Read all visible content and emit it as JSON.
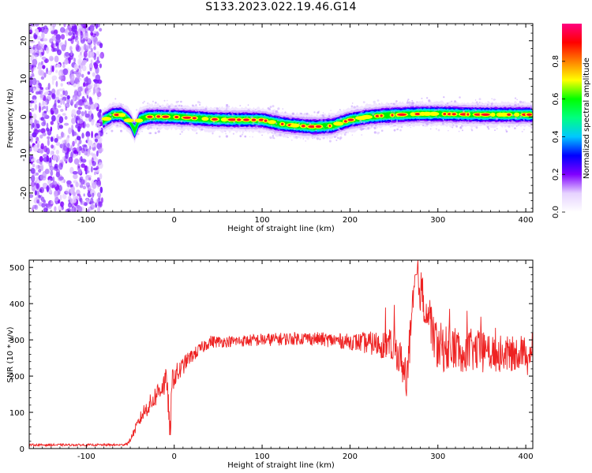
{
  "title": "S133.2023.022.19.46.G14",
  "chart_data": [
    {
      "type": "heatmap",
      "xlabel": "Height of straight line (km)",
      "ylabel": "Frequency (Hz)",
      "xlim": [
        -165,
        408
      ],
      "ylim": [
        -25,
        24.5
      ],
      "xticks": [
        -100,
        0,
        100,
        200,
        300,
        400
      ],
      "xtick_labels": [
        "-100",
        "0",
        "100",
        "200",
        "300",
        "400"
      ],
      "yticks": [
        -20,
        -10,
        0,
        10,
        20
      ],
      "ytick_labels": [
        "-20",
        "-10",
        "0",
        "10",
        "20"
      ],
      "noise_region_x": [
        -165,
        -82
      ],
      "ridge_center": {
        "x": [
          -82,
          -70,
          -60,
          -50,
          -45,
          -40,
          -30,
          -20,
          0,
          50,
          100,
          120,
          140,
          160,
          180,
          200,
          220,
          240,
          280,
          300,
          350,
          408
        ],
        "y": [
          -1.2,
          0.5,
          0.6,
          -1.2,
          -3.8,
          -0.8,
          0.0,
          0.1,
          0.0,
          -0.7,
          -0.8,
          -1.8,
          -2.3,
          -2.6,
          -2.3,
          -0.8,
          0.0,
          0.4,
          0.8,
          0.8,
          0.6,
          0.6
        ]
      },
      "grid": false,
      "colorbar": {
        "label": "Normalized spectral amplitude",
        "range": [
          0,
          1
        ],
        "ticks": [
          "0.0",
          "0.2",
          "0.4",
          "0.6",
          "0.8"
        ],
        "colors": [
          "#ffffff",
          "#e6d2ff",
          "#8000ff",
          "#0000ff",
          "#00c8ff",
          "#00ff80",
          "#00ff00",
          "#ffff00",
          "#ff8000",
          "#ff0000",
          "#ff0080"
        ]
      }
    },
    {
      "type": "line",
      "xlabel": "Height of straight line (km)",
      "ylabel": "SNR (10 * v/v)",
      "xlim": [
        -165,
        408
      ],
      "ylim": [
        0,
        520
      ],
      "xticks": [
        -100,
        0,
        100,
        200,
        300,
        400
      ],
      "xtick_labels": [
        "-100",
        "0",
        "100",
        "200",
        "300",
        "400"
      ],
      "yticks": [
        0,
        100,
        200,
        300,
        400,
        500
      ],
      "ytick_labels": [
        "0",
        "100",
        "200",
        "300",
        "400",
        "500"
      ],
      "color": "#ee2222",
      "grid": false,
      "series": [
        {
          "x": [
            -165,
            -140,
            -110,
            -80,
            -60,
            -52,
            -45,
            -35,
            -25,
            -15,
            -8,
            -5,
            -2,
            5,
            15,
            25,
            40,
            60,
            100,
            150,
            200,
            250,
            265,
            275,
            300,
            340,
            380,
            408
          ],
          "y": [
            10,
            10,
            10,
            10,
            10,
            15,
            50,
            100,
            130,
            170,
            185,
            30,
            195,
            210,
            245,
            265,
            295,
            295,
            300,
            305,
            295,
            285,
            200,
            480,
            280,
            270,
            260,
            270
          ],
          "spread": [
            3,
            3,
            3,
            3,
            3,
            5,
            12,
            22,
            28,
            35,
            40,
            40,
            35,
            30,
            20,
            18,
            18,
            15,
            18,
            18,
            22,
            45,
            60,
            60,
            70,
            60,
            50,
            40
          ]
        }
      ]
    }
  ]
}
